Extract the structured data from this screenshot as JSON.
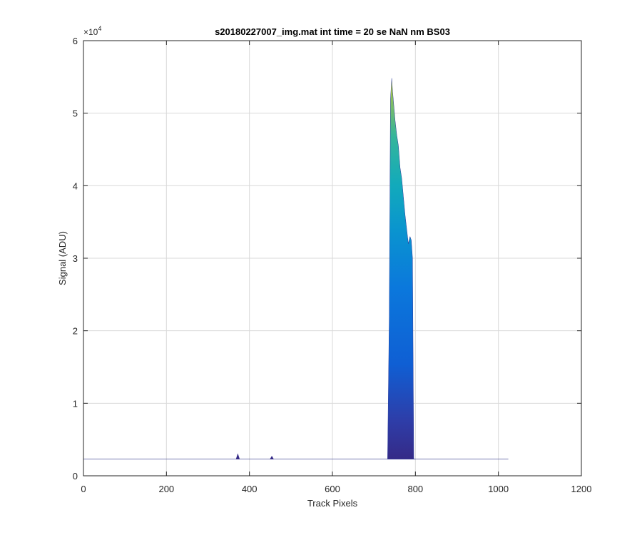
{
  "chart_data": {
    "type": "area",
    "title": "s20180227007_img.mat int time = 20 se  NaN nm BS03",
    "xlabel": "Track Pixels",
    "ylabel": "Signal (ADU)",
    "xlim": [
      0,
      1200
    ],
    "ylim": [
      0,
      60000
    ],
    "x_ticks": [
      "0",
      "200",
      "400",
      "600",
      "800",
      "1000",
      "1200"
    ],
    "y_ticks": [
      "0",
      "1",
      "2",
      "3",
      "4",
      "5",
      "6"
    ],
    "y_exponent_prefix": "×10",
    "y_exponent_power": "4",
    "grid": true,
    "colormap": "parula",
    "baseline": 2300,
    "baseline_x_range": [
      0,
      1024
    ],
    "peaks": [
      {
        "x": [
          368,
          372,
          376
        ],
        "y": [
          2300,
          3000,
          2300
        ]
      },
      {
        "x": [
          450,
          454,
          458
        ],
        "y": [
          2300,
          2700,
          2300
        ]
      }
    ],
    "band": {
      "x": [
        733,
        737,
        740,
        743,
        745,
        748,
        751,
        755,
        759,
        763,
        767,
        771,
        775,
        779,
        783,
        787,
        790,
        793,
        796,
        800
      ],
      "y": [
        2300,
        22000,
        52000,
        54800,
        53000,
        51000,
        49000,
        47000,
        45500,
        42500,
        41000,
        38500,
        36000,
        34000,
        32000,
        33000,
        32500,
        30000,
        2300,
        2300
      ]
    }
  }
}
